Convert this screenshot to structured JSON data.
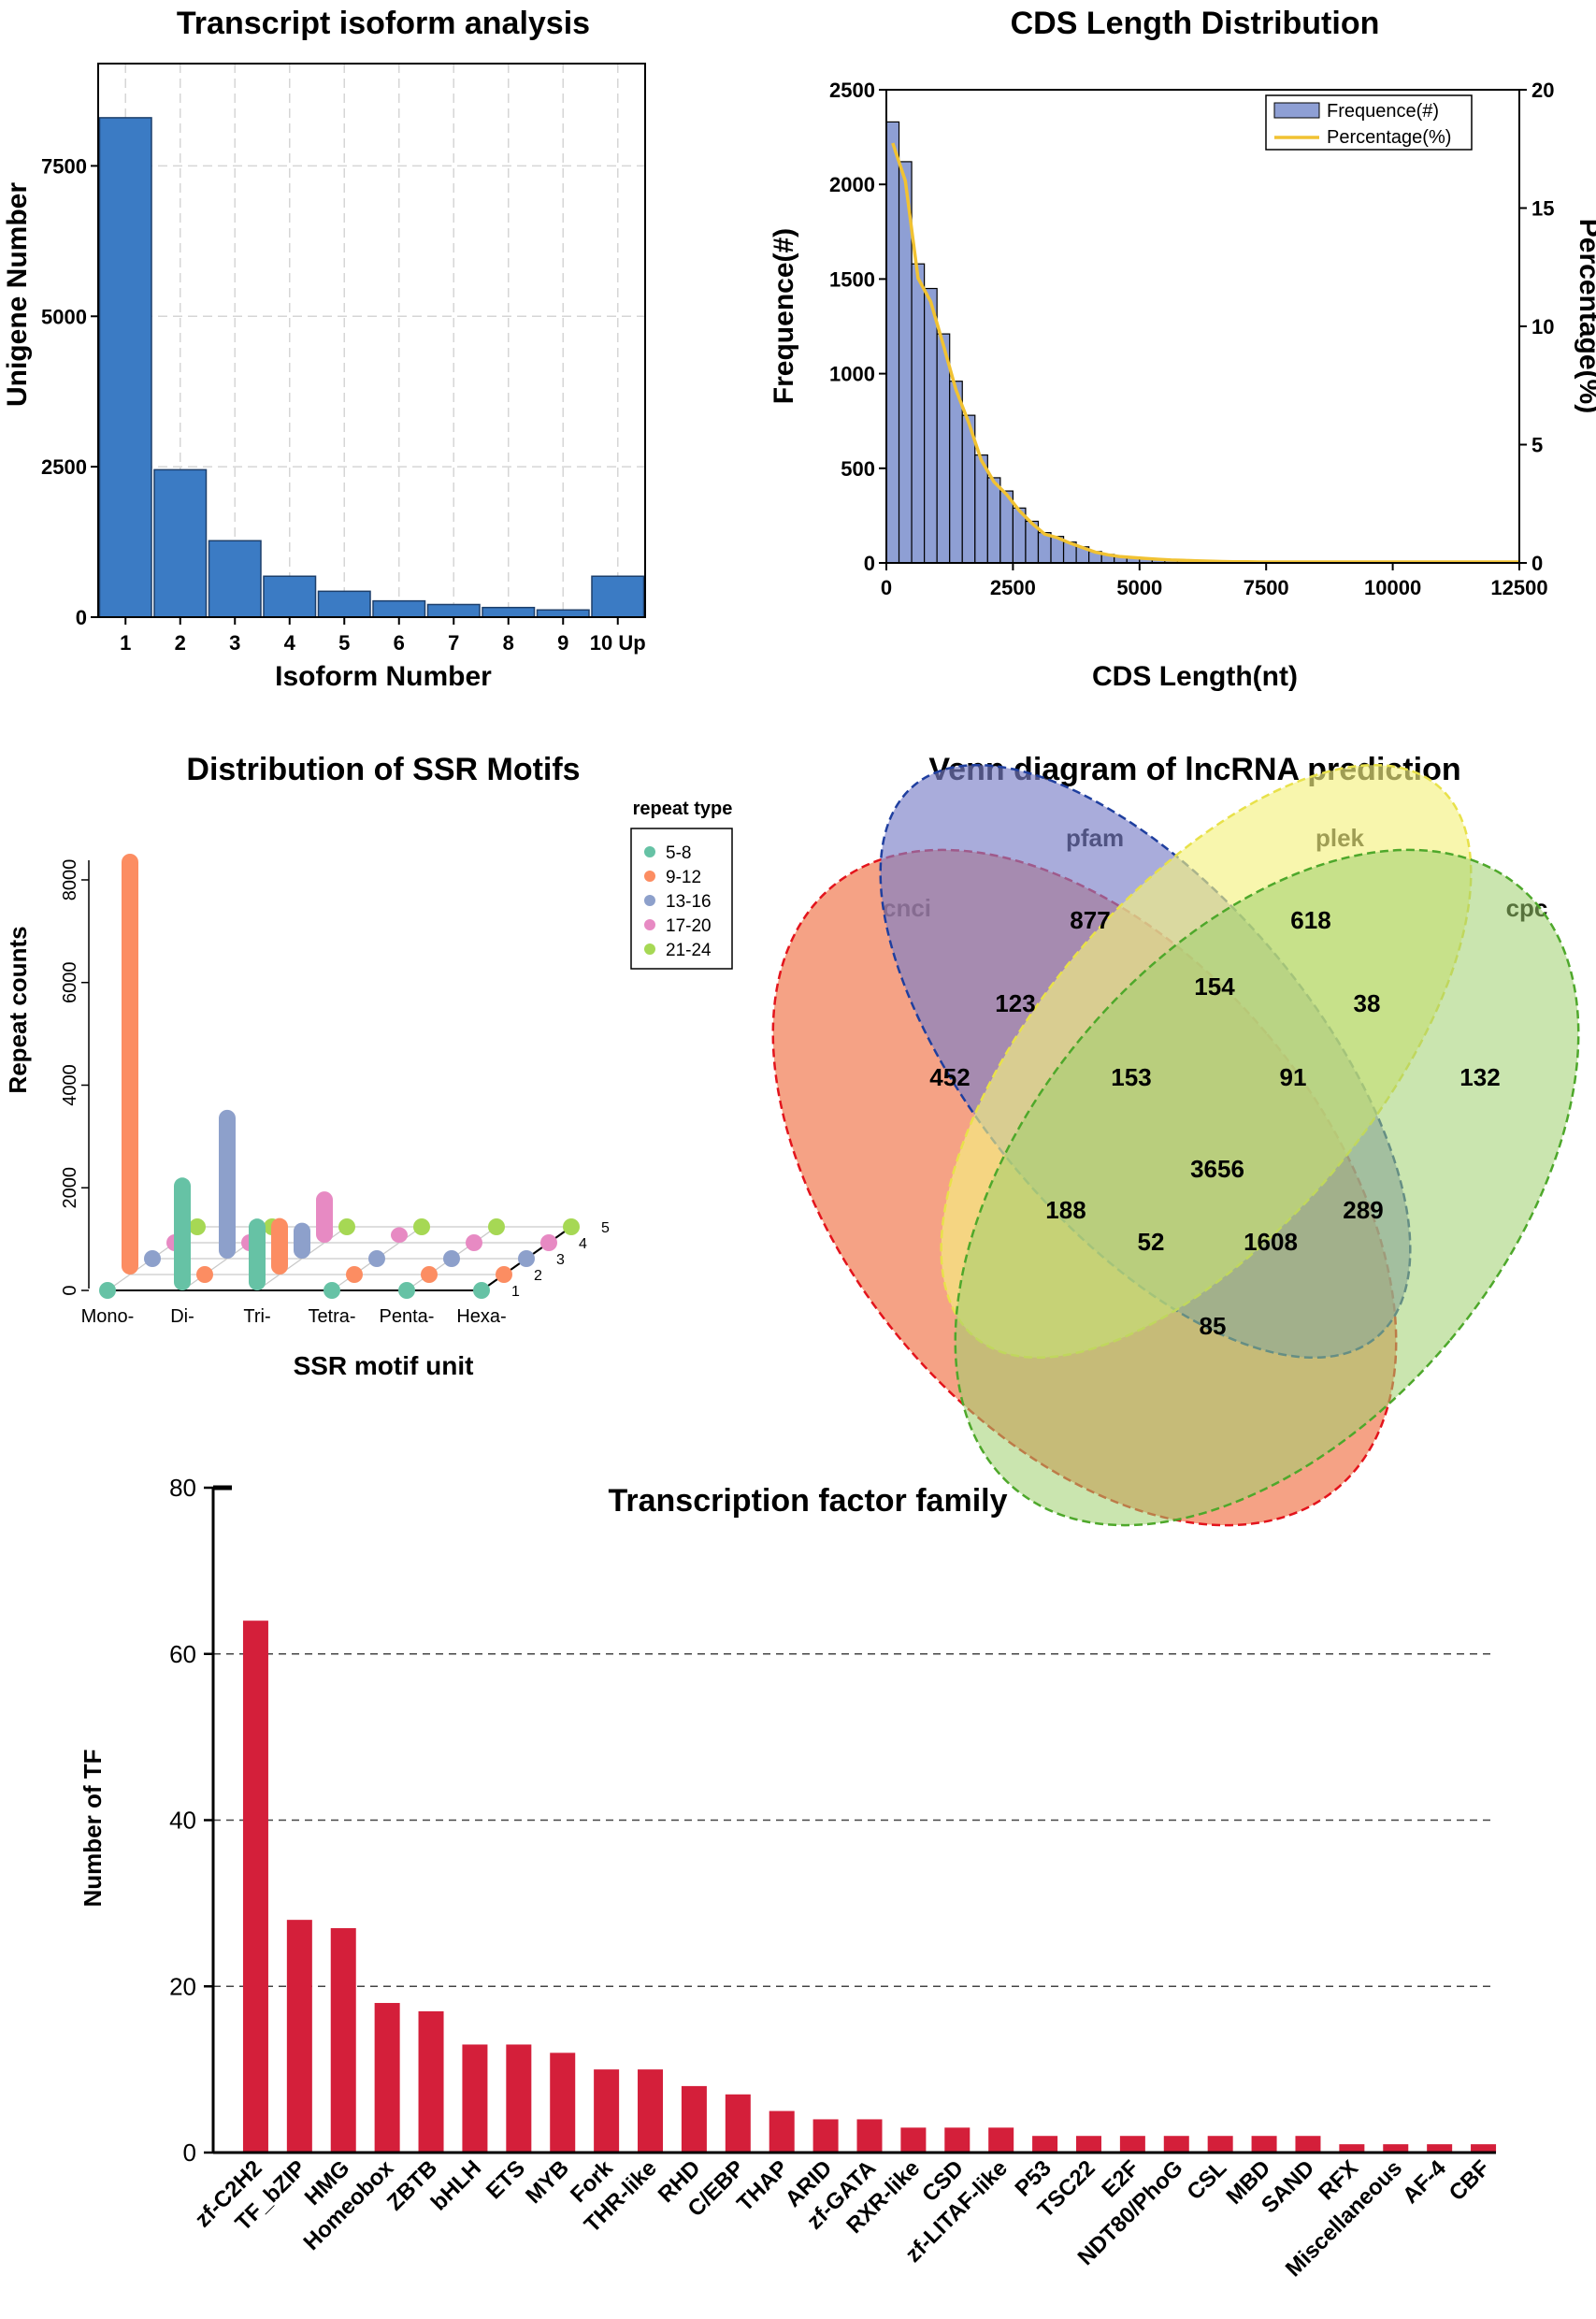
{
  "colors": {
    "isoform_bar": "#3b7bc4",
    "cds_bar": "#8e9fd4",
    "cds_line": "#f1c232",
    "tf_bar": "#d41f3a",
    "ssr_5_8": "#66c2a5",
    "ssr_9_12": "#fc8d62",
    "ssr_13_16": "#8da0cb",
    "ssr_17_20": "#e78ac3",
    "ssr_21_24": "#a6d854",
    "venn_cnci": "#ef7043",
    "venn_pfam": "#7b7fc8",
    "venn_plek": "#f4f181",
    "venn_cpc": "#9fd06e"
  },
  "chart_data": [
    {
      "type": "bar",
      "title": "Transcript isoform analysis",
      "xlabel": "Isoform Number",
      "ylabel": "Unigene Number",
      "categories": [
        "1",
        "2",
        "3",
        "4",
        "5",
        "6",
        "7",
        "8",
        "9",
        "10 Up"
      ],
      "values": [
        8300,
        2450,
        1270,
        680,
        430,
        270,
        210,
        160,
        120,
        680
      ],
      "ylim": [
        0,
        9200
      ],
      "yticks": [
        "0",
        "2500",
        "5000",
        "7500"
      ],
      "grid": true
    },
    {
      "type": "bar",
      "title": "CDS Length Distribution",
      "xlabel": "CDS Length(nt)",
      "ylabel": "Frequence(#)",
      "ylabel_right": "Percentage(%)",
      "legend": [
        "Frequence(#)",
        "Percentage(%)"
      ],
      "bin_width": 250,
      "values": [
        2330,
        2120,
        1580,
        1450,
        1210,
        960,
        780,
        570,
        450,
        380,
        290,
        220,
        160,
        140,
        110,
        85,
        60,
        45,
        35,
        30,
        25,
        20,
        16,
        14,
        12,
        10,
        8,
        7,
        6,
        5
      ],
      "xlim": [
        0,
        12500
      ],
      "ylim": [
        0,
        2500
      ],
      "ylim_right": [
        0,
        20
      ],
      "xticks": [
        "0",
        "2500",
        "5000",
        "7500",
        "10000",
        "12500"
      ],
      "yticks": [
        "0",
        "500",
        "1000",
        "1500",
        "2000",
        "2500"
      ],
      "yticks_right": [
        "0",
        "5",
        "10",
        "15",
        "20"
      ]
    },
    {
      "type": "bar",
      "title": "Distribution of SSR Motifs",
      "xlabel": "SSR motif unit",
      "ylabel": "Repeat counts",
      "legend_title": "repeat type",
      "categories": [
        "Mono-",
        "Di-",
        "Tri-",
        "Tetra-",
        "Penta-",
        "Hexa-"
      ],
      "depth_labels": [
        "1",
        "2",
        "3",
        "4",
        "5"
      ],
      "series": [
        {
          "name": "5-8",
          "values": [
            0,
            2200,
            1400,
            0,
            0,
            0
          ]
        },
        {
          "name": "9-12",
          "values": [
            8200,
            0,
            1100,
            0,
            0,
            0
          ]
        },
        {
          "name": "13-16",
          "values": [
            0,
            2900,
            700,
            0,
            0,
            0
          ]
        },
        {
          "name": "17-20",
          "values": [
            0,
            0,
            1000,
            300,
            0,
            0
          ]
        },
        {
          "name": "21-24",
          "values": [
            0,
            0,
            0,
            0,
            0,
            0
          ]
        }
      ],
      "ylim": [
        0,
        8200
      ],
      "yticks": [
        "0",
        "2000",
        "4000",
        "6000",
        "8000"
      ]
    },
    {
      "type": "venn",
      "title": "Venn diagram of lncRNA prediction",
      "sets": [
        "cnci",
        "pfam",
        "plek",
        "cpc"
      ],
      "regions": [
        {
          "sets": [
            "cnci"
          ],
          "value": 452
        },
        {
          "sets": [
            "pfam"
          ],
          "value": 877
        },
        {
          "sets": [
            "plek"
          ],
          "value": 618
        },
        {
          "sets": [
            "cpc"
          ],
          "value": 132
        },
        {
          "sets": [
            "cnci",
            "pfam"
          ],
          "value": 123
        },
        {
          "sets": [
            "pfam",
            "plek"
          ],
          "value": 154
        },
        {
          "sets": [
            "plek",
            "cpc"
          ],
          "value": 38
        },
        {
          "sets": [
            "cnci",
            "pfam",
            "plek"
          ],
          "value": 153
        },
        {
          "sets": [
            "pfam",
            "plek",
            "cpc"
          ],
          "value": 91
        },
        {
          "sets": [
            "cnci",
            "pfam",
            "plek",
            "cpc"
          ],
          "value": 3656
        },
        {
          "sets": [
            "cnci",
            "plek"
          ],
          "value": 188
        },
        {
          "sets": [
            "cnci",
            "plek",
            "cpc"
          ],
          "value": 52
        },
        {
          "sets": [
            "cnci",
            "pfam",
            "cpc"
          ],
          "value": 1608
        },
        {
          "sets": [
            "pfam",
            "cpc"
          ],
          "value": 289
        },
        {
          "sets": [
            "cnci",
            "cpc"
          ],
          "value": 85
        }
      ]
    },
    {
      "type": "bar",
      "title": "Transcription factor family",
      "xlabel": "",
      "ylabel": "Number of TF",
      "categories": [
        "zf-C2H2",
        "TF_bZIP",
        "HMG",
        "Homeobox",
        "ZBTB",
        "bHLH",
        "ETS",
        "MYB",
        "Fork",
        "THR-like",
        "RHD",
        "C/EBP",
        "THAP",
        "ARID",
        "zf-GATA",
        "RXR-like",
        "CSD",
        "zf-LITAF-like",
        "P53",
        "TSC22",
        "E2F",
        "NDT80/PhoG",
        "CSL",
        "MBD",
        "SAND",
        "RFX",
        "Miscellaneous",
        "AF-4",
        "CBF"
      ],
      "values": [
        64,
        28,
        27,
        18,
        17,
        13,
        13,
        12,
        10,
        10,
        8,
        7,
        5,
        4,
        4,
        3,
        3,
        3,
        2,
        2,
        2,
        2,
        2,
        2,
        2,
        1,
        1,
        1,
        1
      ],
      "ylim": [
        0,
        80
      ],
      "yticks": [
        "0",
        "20",
        "40",
        "60",
        "80"
      ],
      "grid": true
    }
  ]
}
